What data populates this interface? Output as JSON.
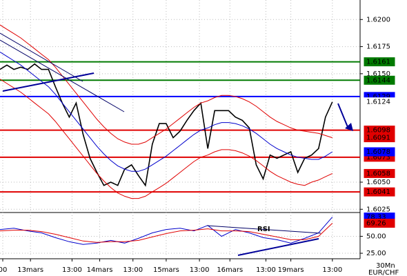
{
  "chart_data": [
    {
      "type": "line",
      "xlim": [
        0,
        130
      ],
      "ylim": [
        1.6022,
        1.6218
      ],
      "xticks": [
        {
          "value": 1,
          "label": "00"
        },
        {
          "value": 11,
          "label": "13mars"
        },
        {
          "value": 26,
          "label": "13:00"
        },
        {
          "value": 36,
          "label": "14mars"
        },
        {
          "value": 48,
          "label": "13:00"
        },
        {
          "value": 60,
          "label": "15mars"
        },
        {
          "value": 72,
          "label": "13:00"
        },
        {
          "value": 83,
          "label": "16mars"
        },
        {
          "value": 96,
          "label": "13:00"
        },
        {
          "value": 105,
          "label": "19mars"
        },
        {
          "value": 120,
          "label": "13:00"
        }
      ],
      "yticks": [
        {
          "value": 1.6025,
          "label": "1.6025"
        },
        {
          "value": 1.605,
          "label": "1.6050"
        },
        {
          "value": 1.615,
          "label": "1.6150"
        },
        {
          "value": 1.6175,
          "label": "1.6175"
        },
        {
          "value": 1.62,
          "label": "1.6200"
        }
      ],
      "grid": true,
      "x": [
        0,
        2.5,
        5,
        7.5,
        10,
        12.5,
        15,
        17.5,
        20,
        22.5,
        25,
        27.5,
        30,
        32.5,
        35,
        37.5,
        40,
        42.5,
        45,
        47.5,
        50,
        52.5,
        55,
        57.5,
        60,
        62.5,
        65,
        67.5,
        70,
        72.5,
        75,
        77.5,
        80,
        82.5,
        85,
        87.5,
        90,
        92.5,
        95,
        97.5,
        100,
        102.5,
        105,
        107.5,
        110,
        112.5,
        115,
        117.5,
        120
      ],
      "series": [
        {
          "color": "#000000",
          "width": 1.6,
          "tag": true,
          "tag_fill": "#ffffff",
          "tag_text": "#000000",
          "values": [
            1.6154,
            1.6158,
            1.6154,
            1.6156,
            1.6154,
            1.6159,
            1.6154,
            1.6154,
            1.6138,
            1.6123,
            1.611,
            1.6123,
            1.6094,
            1.6072,
            1.6059,
            1.6047,
            1.605,
            1.6047,
            1.6062,
            1.6066,
            1.6056,
            1.6047,
            1.6085,
            1.6104,
            1.6104,
            1.6091,
            1.6097,
            1.6107,
            1.6116,
            1.6123,
            1.6081,
            1.6116,
            1.6116,
            1.6116,
            1.611,
            1.6107,
            1.61,
            1.6066,
            1.6053,
            1.6075,
            1.6072,
            1.6075,
            1.6078,
            1.6059,
            1.6072,
            1.6075,
            1.6081,
            1.611,
            1.6124
          ]
        },
        {
          "color": "#e00000",
          "width": 1,
          "tag": true,
          "tag_fill": "#e00000",
          "tag_text": "#ffffff",
          "values": [
            1.6195,
            1.6191,
            1.6187,
            1.6183,
            1.6178,
            1.6173,
            1.6168,
            1.6163,
            1.6156,
            1.6148,
            1.614,
            1.6132,
            1.6124,
            1.6116,
            1.6108,
            1.6101,
            1.6095,
            1.609,
            1.6087,
            1.6085,
            1.6085,
            1.6087,
            1.6091,
            1.6095,
            1.6099,
            1.6104,
            1.6109,
            1.6114,
            1.6119,
            1.6123,
            1.6125,
            1.6128,
            1.613,
            1.613,
            1.6129,
            1.6127,
            1.6124,
            1.612,
            1.6115,
            1.611,
            1.6106,
            1.6103,
            1.61,
            1.6098,
            1.6097,
            1.6096,
            1.6095,
            1.6093,
            1.6091
          ]
        },
        {
          "color": "#e00000",
          "width": 1,
          "tag": true,
          "tag_fill": "#e00000",
          "tag_text": "#ffffff",
          "values": [
            1.6145,
            1.6141,
            1.6137,
            1.6133,
            1.6128,
            1.6123,
            1.6118,
            1.6113,
            1.6106,
            1.6098,
            1.609,
            1.6082,
            1.6074,
            1.6066,
            1.6058,
            1.6051,
            1.6045,
            1.604,
            1.6037,
            1.6035,
            1.6035,
            1.6037,
            1.6041,
            1.6045,
            1.6049,
            1.6054,
            1.6059,
            1.6064,
            1.6069,
            1.6073,
            1.6075,
            1.6078,
            1.608,
            1.608,
            1.6079,
            1.6077,
            1.6074,
            1.607,
            1.6065,
            1.606,
            1.6056,
            1.6053,
            1.605,
            1.6048,
            1.6047,
            1.605,
            1.6052,
            1.6055,
            1.6058
          ]
        },
        {
          "color": "#0000cc",
          "width": 1,
          "tag": true,
          "tag_fill": "#0000ff",
          "tag_text": "#ffffff",
          "values": [
            1.617,
            1.6166,
            1.6162,
            1.6158,
            1.6153,
            1.6148,
            1.6143,
            1.6138,
            1.6131,
            1.6123,
            1.6115,
            1.6107,
            1.6099,
            1.6091,
            1.6083,
            1.6076,
            1.607,
            1.6065,
            1.6062,
            1.606,
            1.606,
            1.6062,
            1.6066,
            1.607,
            1.6074,
            1.6079,
            1.6084,
            1.6089,
            1.6094,
            1.6098,
            1.61,
            1.6103,
            1.6105,
            1.6105,
            1.6104,
            1.6102,
            1.6099,
            1.6095,
            1.609,
            1.6085,
            1.6081,
            1.6078,
            1.6075,
            1.6073,
            1.6072,
            1.6071,
            1.6071,
            1.6074,
            1.6078
          ]
        }
      ],
      "levels": [
        {
          "value": 1.6161,
          "color": "#007a00"
        },
        {
          "value": 1.6144,
          "color": "#007a00"
        },
        {
          "value": 1.6129,
          "color": "#0000ff"
        },
        {
          "value": 1.6098,
          "color": "#e00000"
        },
        {
          "value": 1.6073,
          "color": "#e00000"
        },
        {
          "value": 1.6041,
          "color": "#e00000"
        }
      ]
    },
    {
      "type": "line",
      "title": "RSI",
      "xlim": [
        0,
        130
      ],
      "ylim": [
        22,
        83
      ],
      "yticks": [
        {
          "value": 25,
          "label": "25.00"
        },
        {
          "value": 50,
          "label": "50.00"
        }
      ],
      "grid": true,
      "x": [
        0,
        5,
        10,
        15,
        20,
        25,
        30,
        35,
        40,
        45,
        50,
        55,
        60,
        65,
        70,
        75,
        80,
        85,
        90,
        95,
        100,
        105,
        110,
        115,
        120
      ],
      "series": [
        {
          "color": "#0000cc",
          "width": 1,
          "tag": true,
          "tag_fill": "#0000ff",
          "tag_text": "#ffffff",
          "values": [
            60,
            62,
            58,
            55,
            48,
            42,
            38,
            40,
            44,
            40,
            47,
            55,
            60,
            62,
            58,
            66,
            50,
            60,
            55,
            48,
            45,
            40,
            47,
            55,
            78.33
          ]
        },
        {
          "color": "#e00000",
          "width": 1,
          "tag": true,
          "tag_fill": "#e00000",
          "tag_text": "#ffffff",
          "values": [
            58,
            59,
            59,
            57,
            53,
            48,
            43,
            41,
            42,
            42,
            44,
            49,
            54,
            58,
            59,
            61,
            58,
            58,
            57,
            53,
            49,
            45,
            45,
            50,
            69.26
          ]
        }
      ]
    }
  ],
  "footer": {
    "timeframe": "30Mn",
    "symbol": "EUR/CHF"
  }
}
